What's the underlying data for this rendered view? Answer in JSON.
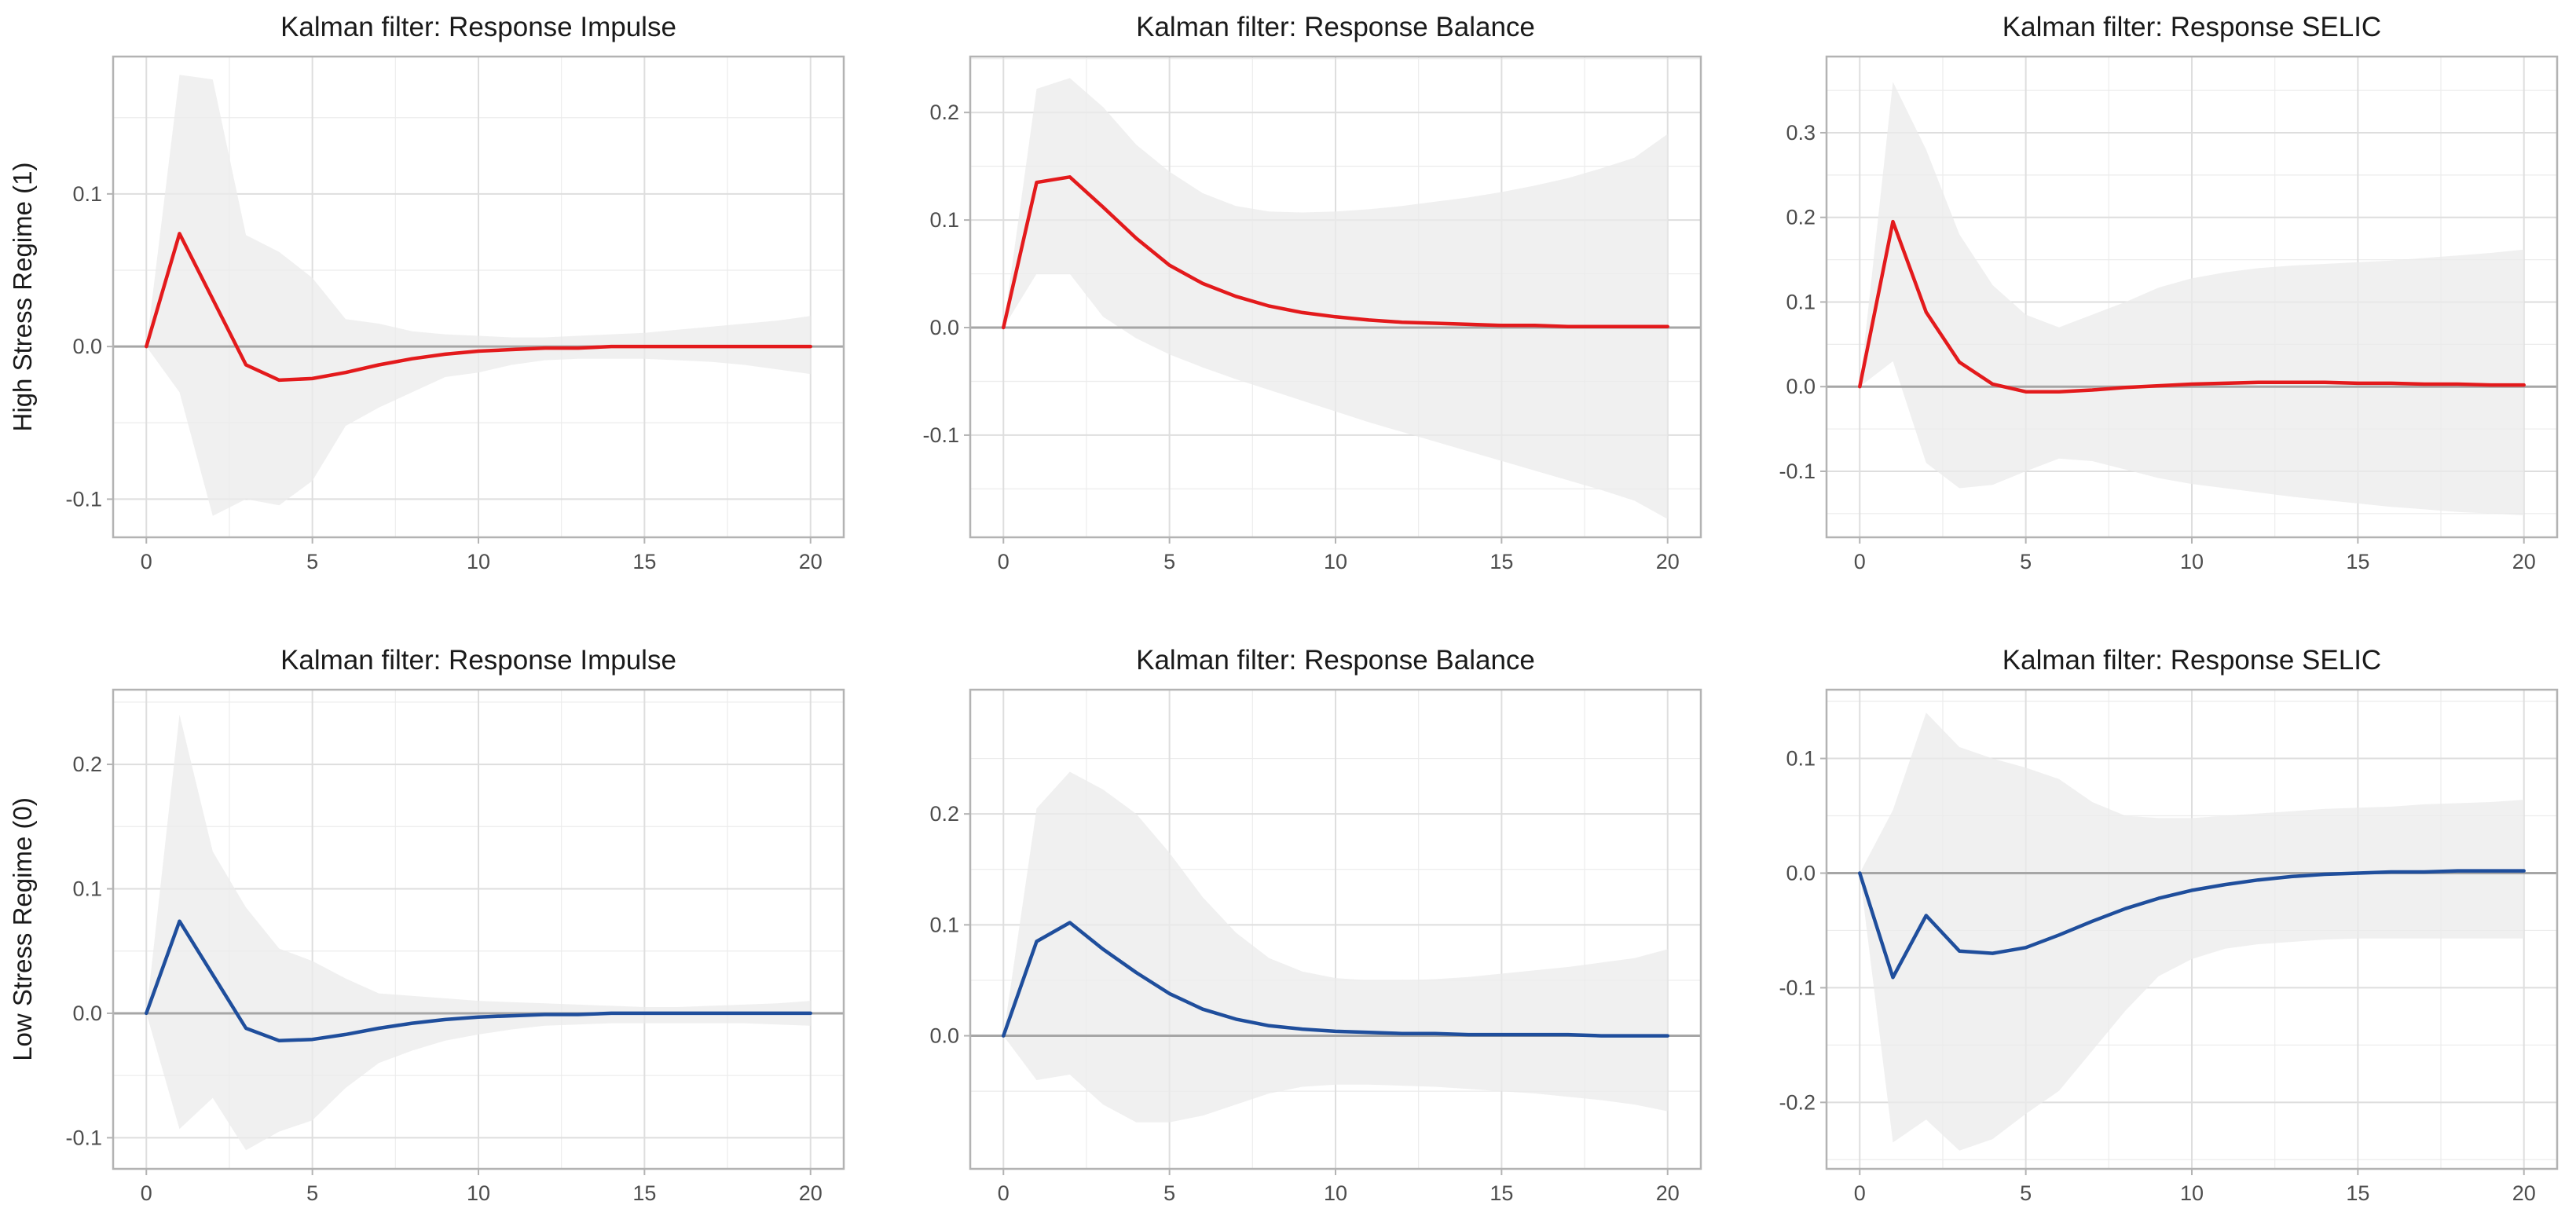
{
  "chart_data": [
    {
      "type": "line",
      "title": "Kalman filter: Response Impulse",
      "row_label": "High Stress Regime (1)",
      "xlabel": "",
      "ylabel": "",
      "xlim": [
        -1,
        21
      ],
      "ylim": [
        -0.125,
        0.19
      ],
      "xticks": [
        0,
        5,
        10,
        15,
        20
      ],
      "xtick_labels": [
        "0",
        "5",
        "10",
        "15",
        "20"
      ],
      "yticks": [
        -0.1,
        0,
        0.1
      ],
      "ytick_labels": [
        "-0.1",
        "0.0",
        "0.1"
      ],
      "line_color": "#e31a1c",
      "x": [
        0,
        1,
        2,
        3,
        4,
        5,
        6,
        7,
        8,
        9,
        10,
        11,
        12,
        13,
        14,
        15,
        16,
        17,
        18,
        19,
        20
      ],
      "series": [
        {
          "name": "response",
          "values": [
            0,
            0.074,
            0.031,
            -0.012,
            -0.022,
            -0.021,
            -0.017,
            -0.012,
            -0.008,
            -0.005,
            -0.003,
            -0.002,
            -0.001,
            -0.001,
            0,
            0,
            0,
            0,
            0,
            0,
            0
          ]
        },
        {
          "name": "upper",
          "values": [
            0,
            0.178,
            0.175,
            0.073,
            0.062,
            0.045,
            0.018,
            0.015,
            0.01,
            0.008,
            0.007,
            0.006,
            0.006,
            0.007,
            0.008,
            0.009,
            0.011,
            0.013,
            0.015,
            0.017,
            0.02
          ]
        },
        {
          "name": "lower",
          "values": [
            0,
            -0.03,
            -0.111,
            -0.1,
            -0.104,
            -0.088,
            -0.052,
            -0.04,
            -0.03,
            -0.02,
            -0.017,
            -0.012,
            -0.009,
            -0.008,
            -0.008,
            -0.008,
            -0.009,
            -0.01,
            -0.012,
            -0.015,
            -0.018
          ]
        }
      ]
    },
    {
      "type": "line",
      "title": "Kalman filter: Response Balance",
      "row_label": "",
      "xlabel": "",
      "ylabel": "",
      "xlim": [
        -1,
        21
      ],
      "ylim": [
        -0.195,
        0.252
      ],
      "xticks": [
        0,
        5,
        10,
        15,
        20
      ],
      "xtick_labels": [
        "0",
        "5",
        "10",
        "15",
        "20"
      ],
      "yticks": [
        -0.1,
        0,
        0.1,
        0.2
      ],
      "ytick_labels": [
        "-0.1",
        "0.0",
        "0.1",
        "0.2"
      ],
      "line_color": "#e31a1c",
      "x": [
        0,
        1,
        2,
        3,
        4,
        5,
        6,
        7,
        8,
        9,
        10,
        11,
        12,
        13,
        14,
        15,
        16,
        17,
        18,
        19,
        20
      ],
      "series": [
        {
          "name": "response",
          "values": [
            0,
            0.135,
            0.14,
            0.112,
            0.083,
            0.058,
            0.041,
            0.029,
            0.02,
            0.014,
            0.01,
            0.007,
            0.005,
            0.004,
            0.003,
            0.002,
            0.002,
            0.001,
            0.001,
            0.001,
            0.001
          ]
        },
        {
          "name": "upper",
          "values": [
            0,
            0.222,
            0.232,
            0.205,
            0.17,
            0.145,
            0.125,
            0.113,
            0.108,
            0.107,
            0.108,
            0.11,
            0.113,
            0.117,
            0.121,
            0.126,
            0.132,
            0.139,
            0.148,
            0.158,
            0.18
          ]
        },
        {
          "name": "lower",
          "values": [
            0,
            0.05,
            0.05,
            0.01,
            -0.01,
            -0.025,
            -0.037,
            -0.048,
            -0.058,
            -0.068,
            -0.078,
            -0.088,
            -0.097,
            -0.106,
            -0.115,
            -0.124,
            -0.133,
            -0.142,
            -0.151,
            -0.161,
            -0.178
          ]
        }
      ]
    },
    {
      "type": "line",
      "title": "Kalman filter: Response SELIC",
      "row_label": "",
      "xlabel": "",
      "ylabel": "",
      "xlim": [
        -1,
        21
      ],
      "ylim": [
        -0.178,
        0.39
      ],
      "xticks": [
        0,
        5,
        10,
        15,
        20
      ],
      "xtick_labels": [
        "0",
        "5",
        "10",
        "15",
        "20"
      ],
      "yticks": [
        -0.1,
        0,
        0.1,
        0.2,
        0.3
      ],
      "ytick_labels": [
        "-0.1",
        "0.0",
        "0.1",
        "0.2",
        "0.3"
      ],
      "line_color": "#e31a1c",
      "x": [
        0,
        1,
        2,
        3,
        4,
        5,
        6,
        7,
        8,
        9,
        10,
        11,
        12,
        13,
        14,
        15,
        16,
        17,
        18,
        19,
        20
      ],
      "series": [
        {
          "name": "response",
          "values": [
            0,
            0.195,
            0.088,
            0.029,
            0.003,
            -0.006,
            -0.006,
            -0.004,
            -0.001,
            0.001,
            0.003,
            0.004,
            0.005,
            0.005,
            0.005,
            0.004,
            0.004,
            0.003,
            0.003,
            0.002,
            0.002
          ]
        },
        {
          "name": "upper",
          "values": [
            0,
            0.36,
            0.28,
            0.18,
            0.12,
            0.085,
            0.07,
            0.085,
            0.1,
            0.117,
            0.128,
            0.135,
            0.14,
            0.143,
            0.145,
            0.147,
            0.149,
            0.152,
            0.155,
            0.158,
            0.162
          ]
        },
        {
          "name": "lower",
          "values": [
            0,
            0.03,
            -0.09,
            -0.12,
            -0.116,
            -0.1,
            -0.085,
            -0.088,
            -0.098,
            -0.108,
            -0.115,
            -0.12,
            -0.125,
            -0.13,
            -0.134,
            -0.138,
            -0.142,
            -0.145,
            -0.148,
            -0.15,
            -0.152
          ]
        }
      ]
    },
    {
      "type": "line",
      "title": "Kalman filter: Response Impulse",
      "row_label": "Low Stress Regime (0)",
      "xlabel": "",
      "ylabel": "",
      "xlim": [
        -1,
        21
      ],
      "ylim": [
        -0.125,
        0.26
      ],
      "xticks": [
        0,
        5,
        10,
        15,
        20
      ],
      "xtick_labels": [
        "0",
        "5",
        "10",
        "15",
        "20"
      ],
      "yticks": [
        -0.1,
        0,
        0.1,
        0.2
      ],
      "ytick_labels": [
        "-0.1",
        "0.0",
        "0.1",
        "0.2"
      ],
      "line_color": "#1f4e9c",
      "x": [
        0,
        1,
        2,
        3,
        4,
        5,
        6,
        7,
        8,
        9,
        10,
        11,
        12,
        13,
        14,
        15,
        16,
        17,
        18,
        19,
        20
      ],
      "series": [
        {
          "name": "response",
          "values": [
            0,
            0.074,
            0.031,
            -0.012,
            -0.022,
            -0.021,
            -0.017,
            -0.012,
            -0.008,
            -0.005,
            -0.003,
            -0.002,
            -0.001,
            -0.001,
            0,
            0,
            0,
            0,
            0,
            0,
            0
          ]
        },
        {
          "name": "upper",
          "values": [
            0,
            0.24,
            0.13,
            0.085,
            0.052,
            0.042,
            0.028,
            0.016,
            0.014,
            0.012,
            0.01,
            0.009,
            0.008,
            0.007,
            0.006,
            0.005,
            0.005,
            0.006,
            0.007,
            0.008,
            0.01
          ]
        },
        {
          "name": "lower",
          "values": [
            0,
            -0.093,
            -0.068,
            -0.11,
            -0.095,
            -0.086,
            -0.06,
            -0.04,
            -0.03,
            -0.022,
            -0.017,
            -0.013,
            -0.01,
            -0.009,
            -0.008,
            -0.008,
            -0.008,
            -0.008,
            -0.008,
            -0.009,
            -0.01
          ]
        }
      ]
    },
    {
      "type": "line",
      "title": "Kalman filter: Response Balance",
      "row_label": "",
      "xlabel": "",
      "ylabel": "",
      "xlim": [
        -1,
        21
      ],
      "ylim": [
        -0.12,
        0.312
      ],
      "xticks": [
        0,
        5,
        10,
        15,
        20
      ],
      "xtick_labels": [
        "0",
        "5",
        "10",
        "15",
        "20"
      ],
      "yticks": [
        0,
        0.1,
        0.2
      ],
      "ytick_labels": [
        "0.0",
        "0.1",
        "0.2"
      ],
      "line_color": "#1f4e9c",
      "x": [
        0,
        1,
        2,
        3,
        4,
        5,
        6,
        7,
        8,
        9,
        10,
        11,
        12,
        13,
        14,
        15,
        16,
        17,
        18,
        19,
        20
      ],
      "series": [
        {
          "name": "response",
          "values": [
            0,
            0.085,
            0.102,
            0.078,
            0.057,
            0.038,
            0.024,
            0.015,
            0.009,
            0.006,
            0.004,
            0.003,
            0.002,
            0.002,
            0.001,
            0.001,
            0.001,
            0.001,
            0,
            0,
            0
          ]
        },
        {
          "name": "upper",
          "values": [
            0,
            0.205,
            0.238,
            0.222,
            0.2,
            0.165,
            0.125,
            0.093,
            0.07,
            0.058,
            0.052,
            0.05,
            0.05,
            0.051,
            0.053,
            0.056,
            0.059,
            0.062,
            0.066,
            0.07,
            0.078
          ]
        },
        {
          "name": "lower",
          "values": [
            0,
            -0.04,
            -0.035,
            -0.062,
            -0.078,
            -0.078,
            -0.072,
            -0.062,
            -0.052,
            -0.046,
            -0.044,
            -0.044,
            -0.045,
            -0.046,
            -0.048,
            -0.05,
            -0.052,
            -0.055,
            -0.058,
            -0.062,
            -0.068
          ]
        }
      ]
    },
    {
      "type": "line",
      "title": "Kalman filter: Response SELIC",
      "row_label": "",
      "xlabel": "",
      "ylabel": "",
      "xlim": [
        -1,
        21
      ],
      "ylim": [
        -0.258,
        0.16
      ],
      "xticks": [
        0,
        5,
        10,
        15,
        20
      ],
      "xtick_labels": [
        "0",
        "5",
        "10",
        "15",
        "20"
      ],
      "yticks": [
        -0.2,
        -0.1,
        0,
        0.1
      ],
      "ytick_labels": [
        "-0.2",
        "-0.1",
        "0.0",
        "0.1"
      ],
      "line_color": "#1f4e9c",
      "x": [
        0,
        1,
        2,
        3,
        4,
        5,
        6,
        7,
        8,
        9,
        10,
        11,
        12,
        13,
        14,
        15,
        16,
        17,
        18,
        19,
        20
      ],
      "series": [
        {
          "name": "response",
          "values": [
            0,
            -0.091,
            -0.037,
            -0.068,
            -0.07,
            -0.065,
            -0.054,
            -0.042,
            -0.031,
            -0.022,
            -0.015,
            -0.01,
            -0.006,
            -0.003,
            -0.001,
            0,
            0.001,
            0.001,
            0.002,
            0.002,
            0.002
          ]
        },
        {
          "name": "upper",
          "values": [
            0,
            0.055,
            0.14,
            0.11,
            0.1,
            0.092,
            0.082,
            0.062,
            0.05,
            0.048,
            0.048,
            0.05,
            0.052,
            0.054,
            0.056,
            0.057,
            0.058,
            0.06,
            0.061,
            0.062,
            0.064
          ]
        },
        {
          "name": "lower",
          "values": [
            0,
            -0.235,
            -0.215,
            -0.242,
            -0.232,
            -0.21,
            -0.19,
            -0.155,
            -0.12,
            -0.09,
            -0.075,
            -0.066,
            -0.062,
            -0.06,
            -0.058,
            -0.057,
            -0.057,
            -0.057,
            -0.057,
            -0.057,
            -0.057
          ]
        }
      ]
    }
  ]
}
